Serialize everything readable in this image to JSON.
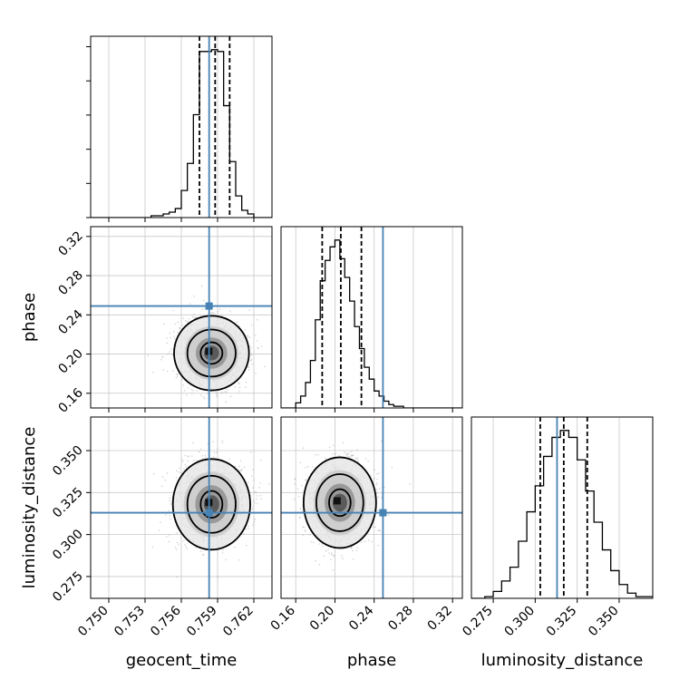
{
  "chart_data": {
    "type": "corner",
    "grid": true,
    "parameters": [
      {
        "key": "geocent_time",
        "label": "geocent_time",
        "range": [
          0.7485,
          0.7635
        ],
        "ticks": [
          "0.750",
          "0.753",
          "0.756",
          "0.759",
          "0.762"
        ],
        "tick_values": [
          0.75,
          0.753,
          0.756,
          0.759,
          0.762
        ],
        "truth": 0.7583,
        "quantiles": [
          0.7575,
          0.7588,
          0.76
        ]
      },
      {
        "key": "phase",
        "label": "phase",
        "range": [
          0.145,
          0.33
        ],
        "ticks": [
          "0.16",
          "0.20",
          "0.24",
          "0.28",
          "0.32"
        ],
        "tick_values": [
          0.16,
          0.2,
          0.24,
          0.28,
          0.32
        ],
        "truth": 0.249,
        "quantiles": [
          0.187,
          0.206,
          0.227
        ]
      },
      {
        "key": "luminosity_distance",
        "label": "luminosity_distance",
        "range": [
          0.262,
          0.37
        ],
        "ticks": [
          "0.275",
          "0.300",
          "0.325",
          "0.350"
        ],
        "tick_values": [
          0.275,
          0.3,
          0.325,
          0.35
        ],
        "truth": 0.313,
        "quantiles": [
          0.303,
          0.317,
          0.331
        ]
      }
    ],
    "histograms": [
      {
        "param": "geocent_time",
        "bin_edges": [
          0.7485,
          0.75,
          0.7515,
          0.7525,
          0.7535,
          0.7545,
          0.755,
          0.7555,
          0.756,
          0.7565,
          0.757,
          0.7575,
          0.758,
          0.7585,
          0.759,
          0.7595,
          0.76,
          0.7605,
          0.761,
          0.7615,
          0.762,
          0.7625,
          0.7635
        ],
        "counts": [
          0,
          0,
          0,
          0,
          1,
          2,
          3,
          5,
          15,
          30,
          57,
          92,
          92,
          93,
          92,
          62,
          31,
          12,
          4,
          2,
          0,
          0
        ]
      },
      {
        "param": "phase",
        "bin_edges": [
          0.145,
          0.16,
          0.165,
          0.17,
          0.175,
          0.18,
          0.185,
          0.19,
          0.195,
          0.2,
          0.205,
          0.21,
          0.215,
          0.22,
          0.225,
          0.23,
          0.235,
          0.24,
          0.245,
          0.25,
          0.255,
          0.26,
          0.27,
          0.33
        ],
        "counts": [
          0,
          3,
          7,
          15,
          28,
          52,
          75,
          87,
          95,
          99,
          88,
          77,
          63,
          48,
          35,
          24,
          17,
          10,
          7,
          4,
          2,
          1,
          0
        ]
      },
      {
        "param": "luminosity_distance",
        "bin_edges": [
          0.262,
          0.27,
          0.275,
          0.28,
          0.285,
          0.29,
          0.295,
          0.3,
          0.305,
          0.31,
          0.315,
          0.32,
          0.325,
          0.33,
          0.335,
          0.34,
          0.345,
          0.35,
          0.355,
          0.36,
          0.37
        ],
        "counts": [
          0,
          1,
          4,
          10,
          18,
          33,
          50,
          65,
          82,
          93,
          97,
          93,
          80,
          62,
          44,
          28,
          16,
          8,
          3,
          1
        ]
      }
    ],
    "contour_pairs": [
      {
        "x": "geocent_time",
        "y": "phase",
        "center": [
          0.7585,
          0.201
        ],
        "levels": [
          {
            "rx": 0.0009,
            "ry": 0.011
          },
          {
            "rx": 0.002,
            "ry": 0.024
          },
          {
            "rx": 0.0031,
            "ry": 0.038
          }
        ]
      },
      {
        "x": "geocent_time",
        "y": "luminosity_distance",
        "center": [
          0.7585,
          0.318
        ],
        "levels": [
          {
            "rx": 0.0009,
            "ry": 0.008
          },
          {
            "rx": 0.002,
            "ry": 0.017
          },
          {
            "rx": 0.0032,
            "ry": 0.027
          }
        ]
      },
      {
        "x": "phase",
        "y": "luminosity_distance",
        "center": [
          0.205,
          0.319
        ],
        "levels": [
          {
            "rx": 0.011,
            "ry": 0.008
          },
          {
            "rx": 0.024,
            "ry": 0.017
          },
          {
            "rx": 0.037,
            "ry": 0.027
          }
        ]
      }
    ],
    "colors": {
      "truth": "#4682b4",
      "hist": "#000000",
      "quantile": "#000000",
      "grid": "#c8c8c8",
      "points": "#9e9e9e"
    }
  }
}
